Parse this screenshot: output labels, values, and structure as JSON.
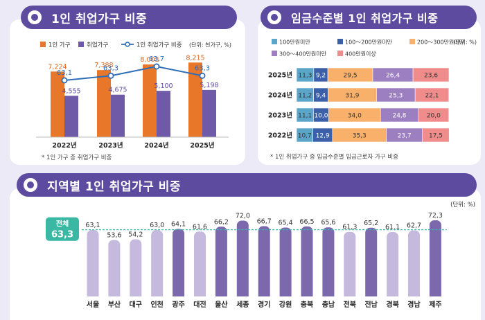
{
  "sections": {
    "s1_title": "1인 취업가구 비중",
    "s2_title": "임금수준별 1인 취업가구 비중",
    "s3_title": "지역별 1인 취업가구 비중"
  },
  "chart_data": [
    {
      "type": "bar",
      "title": "1인 취업가구 비중",
      "unit": "(단위: 천가구, %)",
      "categories": [
        "2022년",
        "2023년",
        "2024년",
        "2025년"
      ],
      "series": [
        {
          "name": "1인 가구",
          "values": [
            7224,
            7388,
            8003,
            8215
          ],
          "labels": [
            "7,224",
            "7,388",
            "8,003",
            "8,215"
          ],
          "color": "#e8772a"
        },
        {
          "name": "취업가구",
          "values": [
            4555,
            4675,
            5100,
            5198
          ],
          "labels": [
            "4,555",
            "4,675",
            "5,100",
            "5,198"
          ],
          "color": "#6f5aa8"
        },
        {
          "name": "1인 취업가구 비중",
          "type": "line",
          "values": [
            63.1,
            63.3,
            63.7,
            63.3
          ],
          "labels": [
            "63,1",
            "63,3",
            "63,7",
            "63,3"
          ],
          "color": "#2f6db5"
        }
      ],
      "note": "* 1인 가구 중 취업가구 비중"
    },
    {
      "type": "bar",
      "stacked": true,
      "orientation": "horizontal",
      "title": "임금수준별 1인 취업가구 비중",
      "unit": "(단위: %)",
      "categories": [
        "2025년",
        "2024년",
        "2023년",
        "2022년"
      ],
      "series": [
        {
          "name": "100만원미만",
          "values": [
            11.3,
            11.2,
            11.1,
            10.7
          ],
          "labels": [
            "11,3",
            "11,2",
            "11,1",
            "10,7"
          ],
          "color": "#5aa5c8"
        },
        {
          "name": "100～200만원미만",
          "values": [
            9.2,
            9.4,
            10.0,
            12.9
          ],
          "labels": [
            "9,2",
            "9,4",
            "10,0",
            "12,9"
          ],
          "color": "#3b5fa8"
        },
        {
          "name": "200～300만원미만",
          "values": [
            29.5,
            31.9,
            34.0,
            35.3
          ],
          "labels": [
            "29,5",
            "31,9",
            "34,0",
            "35,3"
          ],
          "color": "#f8b06a"
        },
        {
          "name": "300～400만원미만",
          "values": [
            26.4,
            25.3,
            24.8,
            23.7
          ],
          "labels": [
            "26,4",
            "25,3",
            "24,8",
            "23,7"
          ],
          "color": "#9c7fc0"
        },
        {
          "name": "400만원이상",
          "values": [
            23.6,
            22.1,
            20.0,
            17.5
          ],
          "labels": [
            "23,6",
            "22,1",
            "20,0",
            "17,5"
          ],
          "color": "#f08c8c"
        }
      ],
      "note": "* 1인 취업가구 중 임금수준별 임금근로자 가구 비중"
    },
    {
      "type": "bar",
      "title": "지역별 1인 취업가구 비중",
      "unit": "(단위: %)",
      "categories": [
        "서울",
        "부산",
        "대구",
        "인천",
        "광주",
        "대전",
        "울산",
        "세종",
        "경기",
        "강원",
        "충북",
        "충남",
        "전북",
        "전남",
        "경북",
        "경남",
        "제주"
      ],
      "values": [
        63.1,
        53.6,
        54.2,
        63.0,
        64.1,
        61.6,
        66.2,
        72.0,
        66.7,
        65.4,
        66.5,
        65.6,
        61.3,
        65.2,
        61.1,
        62.7,
        72.3
      ],
      "labels": [
        "63,1",
        "53,6",
        "54,2",
        "63,0",
        "64,1",
        "61,6",
        "66,2",
        "72,0",
        "66,7",
        "65,4",
        "66,5",
        "65,6",
        "61,3",
        "65,2",
        "61,1",
        "62,7",
        "72,3"
      ],
      "reference": {
        "label": "전체",
        "value": 63.3,
        "value_label": "63,3"
      },
      "colors": {
        "above": "#7b68ad",
        "below": "#c5b9de",
        "reference": "#3bb8a4"
      }
    }
  ]
}
